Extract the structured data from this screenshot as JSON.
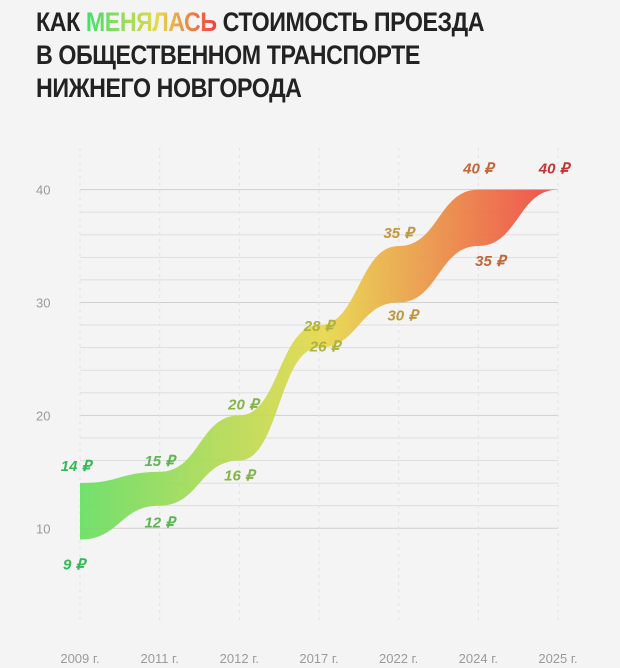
{
  "title": {
    "part1": "КАК ",
    "accent": "МЕНЯЛАСЬ",
    "part2": " СТОИМОСТЬ ПРОЕЗДА",
    "line2": "В ОБЩЕСТВЕННОМ ТРАНСПОРТЕ",
    "line3": "НИЖНЕГО НОВГОРОДА"
  },
  "colors": {
    "low": "#3ee06a",
    "mid": "#e8d84a",
    "high": "#ef4040"
  },
  "chart_data": {
    "type": "area",
    "title": "КАК МЕНЯЛАСЬ СТОИМОСТЬ ПРОЕЗДА В ОБЩЕСТВЕННОМ ТРАНСПОРТЕ НИЖНЕГО НОВГОРОДА",
    "categories": [
      "2009 г.",
      "2011 г.",
      "2012 г.",
      "2017 г.",
      "2022 г.",
      "2024 г.",
      "2025 г."
    ],
    "series": [
      {
        "values": [
          14,
          15,
          20,
          28,
          35,
          40,
          40
        ],
        "labels": [
          "14 ₽",
          "15 ₽",
          "20 ₽",
          "28 ₽",
          "35 ₽",
          "40 ₽",
          "40 ₽"
        ]
      },
      {
        "values": [
          9,
          12,
          16,
          26,
          30,
          35,
          40
        ],
        "labels": [
          "9 ₽",
          "12 ₽",
          "16 ₽",
          "26 ₽",
          "30 ₽",
          "35 ₽",
          ""
        ]
      }
    ],
    "yticks": [
      10,
      20,
      30,
      40
    ],
    "ylim": [
      4,
      42
    ],
    "grid": true,
    "xlabel": "",
    "ylabel": ""
  }
}
